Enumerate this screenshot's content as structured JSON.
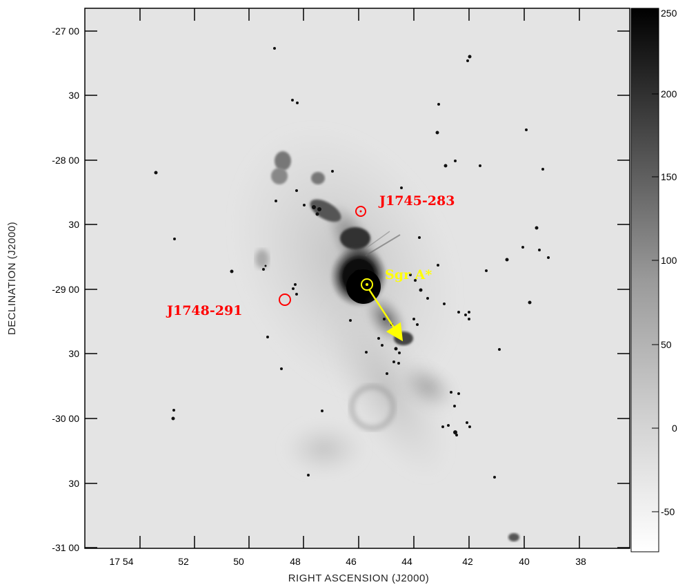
{
  "axes": {
    "x_title": "RIGHT ASCENSION (J2000)",
    "y_title": "DECLINATION (J2000)",
    "x_ticks": [
      "17 54",
      "52",
      "50",
      "48",
      "46",
      "44",
      "42",
      "40",
      "38"
    ],
    "y_ticks": [
      "-27 00",
      "30",
      "-28 00",
      "30",
      "-29 00",
      "30",
      "-30 00",
      "30",
      "-31 00"
    ]
  },
  "colorbar": {
    "ticks": [
      "250",
      "200",
      "150",
      "100",
      "50",
      "0",
      "-50"
    ],
    "range": [
      -70,
      250
    ],
    "scale": "grayscale"
  },
  "sources": [
    {
      "name": "J1745-283",
      "color": "#ff0000"
    },
    {
      "name": "Sgr A*",
      "color": "#ffff00"
    },
    {
      "name": "J1748-291",
      "color": "#ff0000"
    }
  ]
}
